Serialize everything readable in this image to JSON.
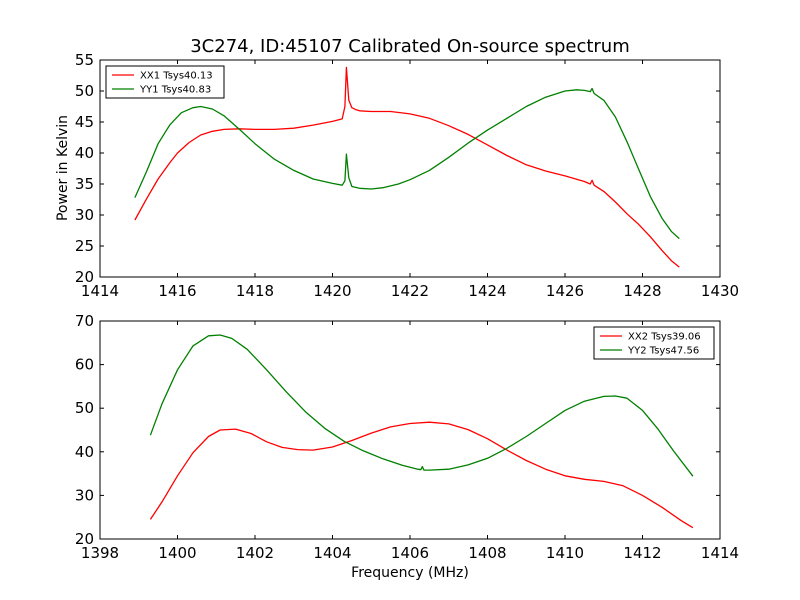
{
  "figure": {
    "title": "3C274, ID:45107 Calibrated On-source spectrum",
    "ylabel": "Power in Kelvin",
    "xlabel": "Frequency (MHz)"
  },
  "chart_data": [
    {
      "type": "line",
      "title": "3C274, ID:45107 Calibrated On-source spectrum",
      "xlabel": "",
      "ylabel": "Power in Kelvin",
      "xlim": [
        1414,
        1430
      ],
      "ylim": [
        20,
        55
      ],
      "xticks": [
        1414,
        1416,
        1418,
        1420,
        1422,
        1424,
        1426,
        1428,
        1430
      ],
      "yticks": [
        20,
        25,
        30,
        35,
        40,
        45,
        50,
        55
      ],
      "grid": false,
      "legend_position": "top-left",
      "series": [
        {
          "name": "XX1 Tsys40.13",
          "color": "#ff0000",
          "x": [
            1414.9,
            1415.2,
            1415.5,
            1415.8,
            1416.0,
            1416.3,
            1416.6,
            1416.9,
            1417.2,
            1417.6,
            1418.0,
            1418.5,
            1419.0,
            1419.5,
            1420.0,
            1420.25,
            1420.32,
            1420.36,
            1420.42,
            1420.5,
            1420.6,
            1420.7,
            1421.0,
            1421.5,
            1422.0,
            1422.5,
            1423.0,
            1423.5,
            1424.0,
            1424.5,
            1425.0,
            1425.5,
            1426.0,
            1426.5,
            1426.65,
            1426.7,
            1426.75,
            1427.0,
            1427.3,
            1427.6,
            1427.9,
            1428.2,
            1428.5,
            1428.75,
            1428.95
          ],
          "y": [
            29.2,
            32.6,
            35.8,
            38.4,
            40.0,
            41.7,
            42.9,
            43.5,
            43.8,
            43.9,
            43.8,
            43.8,
            44.0,
            44.5,
            45.1,
            45.5,
            47.5,
            53.8,
            48.5,
            47.3,
            47.0,
            46.8,
            46.7,
            46.7,
            46.3,
            45.6,
            44.4,
            43.0,
            41.3,
            39.6,
            38.1,
            37.1,
            36.3,
            35.4,
            35.0,
            35.6,
            34.8,
            33.8,
            32.1,
            30.2,
            28.5,
            26.5,
            24.3,
            22.6,
            21.6
          ]
        },
        {
          "name": "YY1 Tsys40.83",
          "color": "#008000",
          "x": [
            1414.9,
            1415.2,
            1415.5,
            1415.8,
            1416.1,
            1416.4,
            1416.6,
            1416.9,
            1417.2,
            1417.6,
            1418.0,
            1418.5,
            1419.0,
            1419.5,
            1420.0,
            1420.25,
            1420.32,
            1420.36,
            1420.42,
            1420.5,
            1420.7,
            1421.0,
            1421.3,
            1421.7,
            1422.0,
            1422.5,
            1423.0,
            1423.5,
            1424.0,
            1424.5,
            1425.0,
            1425.5,
            1426.0,
            1426.3,
            1426.5,
            1426.65,
            1426.7,
            1426.75,
            1427.0,
            1427.3,
            1427.6,
            1427.9,
            1428.2,
            1428.5,
            1428.75,
            1428.95
          ],
          "y": [
            32.8,
            37.0,
            41.5,
            44.5,
            46.5,
            47.3,
            47.5,
            47.1,
            46.0,
            43.8,
            41.5,
            39.0,
            37.2,
            35.8,
            35.1,
            34.8,
            35.5,
            39.8,
            36.0,
            34.6,
            34.3,
            34.2,
            34.4,
            35.0,
            35.7,
            37.2,
            39.3,
            41.6,
            43.7,
            45.6,
            47.5,
            49.0,
            50.0,
            50.2,
            50.1,
            49.9,
            50.4,
            49.6,
            48.5,
            45.8,
            41.8,
            37.4,
            33.0,
            29.5,
            27.3,
            26.2
          ]
        }
      ]
    },
    {
      "type": "line",
      "title": "",
      "xlabel": "Frequency (MHz)",
      "ylabel": "",
      "xlim": [
        1398,
        1414
      ],
      "ylim": [
        20,
        70
      ],
      "xticks": [
        1398,
        1400,
        1402,
        1404,
        1406,
        1408,
        1410,
        1412,
        1414
      ],
      "yticks": [
        20,
        30,
        40,
        50,
        60,
        70
      ],
      "grid": false,
      "legend_position": "top-right",
      "series": [
        {
          "name": "XX2 Tsys39.06",
          "color": "#ff0000",
          "x": [
            1399.3,
            1399.6,
            1400.0,
            1400.4,
            1400.8,
            1401.1,
            1401.5,
            1401.9,
            1402.3,
            1402.7,
            1403.1,
            1403.5,
            1404.0,
            1404.5,
            1405.0,
            1405.5,
            1406.0,
            1406.5,
            1407.0,
            1407.5,
            1408.0,
            1408.5,
            1409.0,
            1409.5,
            1410.0,
            1410.5,
            1411.0,
            1411.5,
            1412.0,
            1412.5,
            1413.0,
            1413.3
          ],
          "y": [
            24.5,
            28.5,
            34.5,
            39.8,
            43.5,
            45.0,
            45.2,
            44.2,
            42.3,
            41.0,
            40.5,
            40.4,
            41.1,
            42.6,
            44.3,
            45.7,
            46.5,
            46.8,
            46.4,
            45.1,
            43.0,
            40.4,
            38.0,
            36.0,
            34.5,
            33.7,
            33.2,
            32.2,
            30.0,
            27.3,
            24.2,
            22.6
          ]
        },
        {
          "name": "YY2 Tsys47.56",
          "color": "#008000",
          "x": [
            1399.3,
            1399.6,
            1400.0,
            1400.4,
            1400.8,
            1401.1,
            1401.4,
            1401.8,
            1402.3,
            1402.8,
            1403.3,
            1403.8,
            1404.3,
            1404.8,
            1405.3,
            1405.8,
            1406.2,
            1406.28,
            1406.32,
            1406.36,
            1406.5,
            1407.0,
            1407.5,
            1408.0,
            1408.5,
            1409.0,
            1409.5,
            1410.0,
            1410.5,
            1411.0,
            1411.3,
            1411.6,
            1412.0,
            1412.4,
            1412.8,
            1413.3
          ],
          "y": [
            43.8,
            51.0,
            58.8,
            64.3,
            66.6,
            66.8,
            66.0,
            63.5,
            58.8,
            53.8,
            49.2,
            45.4,
            42.4,
            40.2,
            38.4,
            36.9,
            36.0,
            35.9,
            36.6,
            35.8,
            35.8,
            36.0,
            37.0,
            38.5,
            40.8,
            43.5,
            46.5,
            49.5,
            51.6,
            52.7,
            52.8,
            52.3,
            49.5,
            45.2,
            40.2,
            34.4
          ]
        }
      ]
    }
  ]
}
